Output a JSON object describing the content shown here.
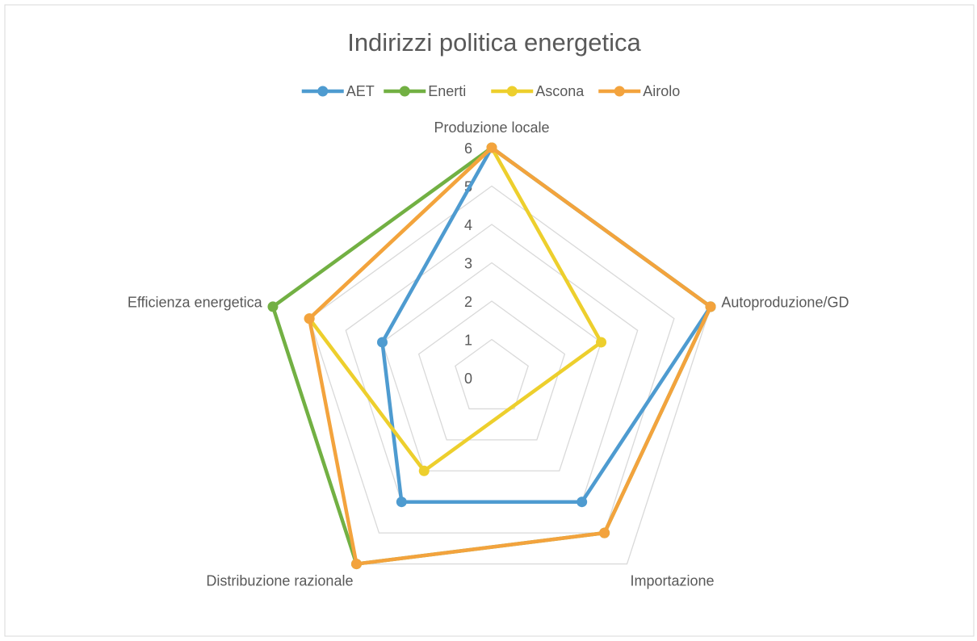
{
  "chart_data": {
    "type": "radar",
    "title": "Indirizzi politica energetica",
    "categories": [
      "Produzione locale",
      "Autoproduzione/GD",
      "Importazione",
      "Distribuzione razionale",
      "Efficienza energetica"
    ],
    "ylim": [
      0,
      6
    ],
    "yticks": [
      0,
      1,
      2,
      3,
      4,
      5,
      6
    ],
    "grid": true,
    "legend": "top",
    "series": [
      {
        "name": "AET",
        "color": "#4e9bd0",
        "values": [
          6,
          6,
          4,
          4,
          3
        ]
      },
      {
        "name": "Enerti",
        "color": "#72b043",
        "values": [
          6,
          6,
          5,
          6,
          6
        ]
      },
      {
        "name": "Ascona",
        "color": "#edcf2d",
        "values": [
          6,
          3,
          null,
          3,
          5
        ]
      },
      {
        "name": "Airolo",
        "color": "#f3a33d",
        "values": [
          6,
          6,
          5,
          6,
          5
        ]
      }
    ]
  }
}
